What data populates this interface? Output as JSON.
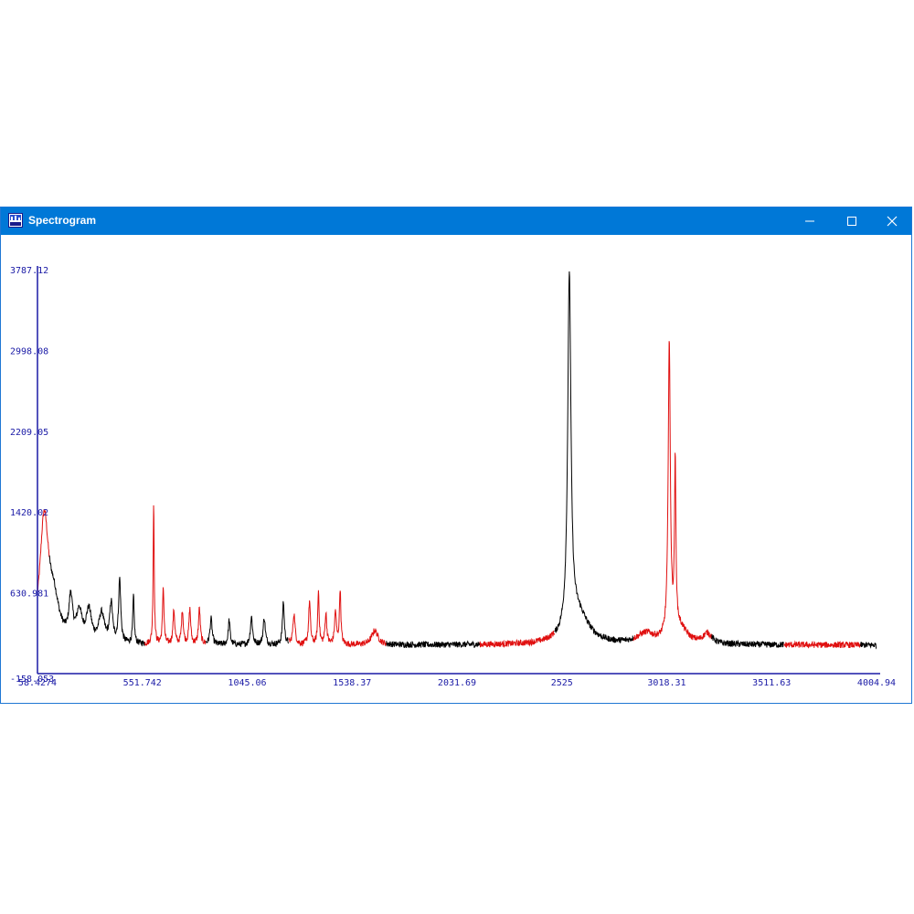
{
  "window": {
    "title": "Spectrogram",
    "icons": {
      "app": "spectrogram-app-icon",
      "minimize": "minimize-icon",
      "maximize": "maximize-icon",
      "close": "close-icon"
    },
    "colors": {
      "titlebar": "#0078d7",
      "axis": "#1a1aa6",
      "series_a": "#000000",
      "series_b": "#e01010"
    }
  },
  "chart_data": {
    "type": "line",
    "title": "",
    "xlabel": "",
    "ylabel": "",
    "xlim": [
      58.4274,
      4004.94
    ],
    "ylim": [
      -158.053,
      3787.12
    ],
    "x_tick_labels": [
      "58.4274",
      "551.742",
      "1045.06",
      "1538.37",
      "2031.69",
      "2525",
      "3018.31",
      "3511.63",
      "4004.94"
    ],
    "y_tick_labels": [
      "-158.053",
      "630.981",
      "1420.02",
      "2209.05",
      "2998.08",
      "3787.12"
    ],
    "x_ticks": [
      58.4274,
      551.742,
      1045.06,
      1538.37,
      2031.69,
      2525,
      3018.31,
      3511.63,
      4004.94
    ],
    "y_ticks": [
      -158.053,
      630.981,
      1420.02,
      2209.05,
      2998.08,
      3787.12
    ],
    "grid": false,
    "legend": "none",
    "baseline": 120,
    "peaks": [
      {
        "x": 90,
        "y": 1200,
        "w": 25
      },
      {
        "x": 135,
        "y": 350,
        "w": 30
      },
      {
        "x": 215,
        "y": 400,
        "w": 10
      },
      {
        "x": 255,
        "y": 280,
        "w": 15
      },
      {
        "x": 300,
        "y": 300,
        "w": 15
      },
      {
        "x": 360,
        "y": 280,
        "w": 15
      },
      {
        "x": 405,
        "y": 380,
        "w": 8
      },
      {
        "x": 445,
        "y": 620,
        "w": 6
      },
      {
        "x": 510,
        "y": 460,
        "w": 4
      },
      {
        "x": 605,
        "y": 1380,
        "w": 3
      },
      {
        "x": 650,
        "y": 560,
        "w": 4
      },
      {
        "x": 700,
        "y": 330,
        "w": 5
      },
      {
        "x": 740,
        "y": 330,
        "w": 5
      },
      {
        "x": 775,
        "y": 340,
        "w": 5
      },
      {
        "x": 820,
        "y": 350,
        "w": 5
      },
      {
        "x": 875,
        "y": 250,
        "w": 6
      },
      {
        "x": 960,
        "y": 240,
        "w": 5
      },
      {
        "x": 1065,
        "y": 270,
        "w": 6
      },
      {
        "x": 1125,
        "y": 260,
        "w": 6
      },
      {
        "x": 1215,
        "y": 420,
        "w": 5
      },
      {
        "x": 1265,
        "y": 300,
        "w": 6
      },
      {
        "x": 1338,
        "y": 420,
        "w": 5
      },
      {
        "x": 1380,
        "y": 520,
        "w": 4
      },
      {
        "x": 1415,
        "y": 300,
        "w": 5
      },
      {
        "x": 1460,
        "y": 320,
        "w": 5
      },
      {
        "x": 1482,
        "y": 540,
        "w": 4
      },
      {
        "x": 1645,
        "y": 140,
        "w": 18
      },
      {
        "x": 2560,
        "y": 3450,
        "w": 9
      },
      {
        "x": 2600,
        "y": 300,
        "w": 60
      },
      {
        "x": 2920,
        "y": 100,
        "w": 50
      },
      {
        "x": 3030,
        "y": 2880,
        "w": 6
      },
      {
        "x": 3058,
        "y": 1620,
        "w": 4
      },
      {
        "x": 3080,
        "y": 150,
        "w": 40
      },
      {
        "x": 3210,
        "y": 100,
        "w": 25
      }
    ],
    "series": [
      {
        "color": "#e01010",
        "x_range": [
          58.4274,
          115
        ]
      },
      {
        "color": "#000000",
        "x_range": [
          115,
          564
        ]
      },
      {
        "color": "#e01010",
        "x_range": [
          564,
          850
        ]
      },
      {
        "color": "#000000",
        "x_range": [
          850,
          1240
        ]
      },
      {
        "color": "#e01010",
        "x_range": [
          1240,
          1700
        ]
      },
      {
        "color": "#000000",
        "x_range": [
          1700,
          2140
        ]
      },
      {
        "color": "#e01010",
        "x_range": [
          2140,
          2490
        ]
      },
      {
        "color": "#000000",
        "x_range": [
          2490,
          2860
        ]
      },
      {
        "color": "#e01010",
        "x_range": [
          2860,
          3230
        ]
      },
      {
        "color": "#000000",
        "x_range": [
          3230,
          3570
        ]
      },
      {
        "color": "#e01010",
        "x_range": [
          3570,
          3930
        ]
      },
      {
        "color": "#000000",
        "x_range": [
          3930,
          4004.94
        ]
      }
    ]
  }
}
